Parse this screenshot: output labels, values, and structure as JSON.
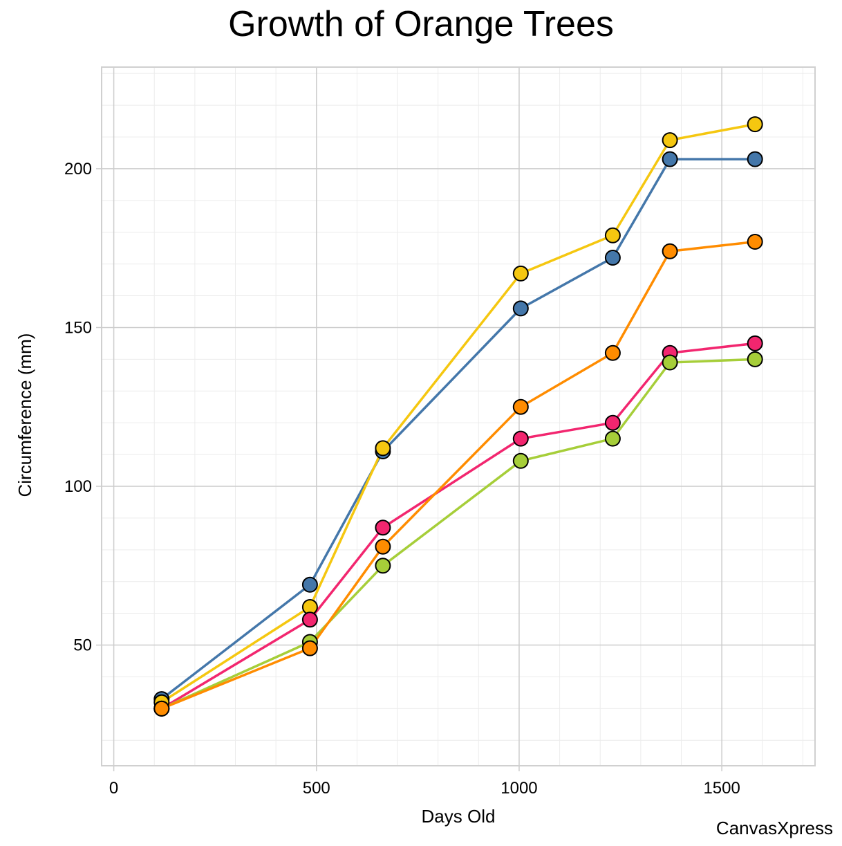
{
  "chart_data": {
    "type": "line",
    "title": "Growth of Orange Trees",
    "xlabel": "Days Old",
    "ylabel": "Circumference (mm)",
    "xlim": [
      -30,
      1730
    ],
    "ylim": [
      12,
      232
    ],
    "x_ticks": [
      0,
      500,
      1000,
      1500
    ],
    "y_ticks": [
      50,
      100,
      150,
      200
    ],
    "x_minor_step": 100,
    "y_minor_step": 10,
    "grid": true,
    "legend": "none",
    "x": [
      118,
      484,
      664,
      1004,
      1231,
      1372,
      1582
    ],
    "series": [
      {
        "color": "#4477AA",
        "values": [
          33,
          69,
          111,
          156,
          172,
          203,
          203
        ]
      },
      {
        "color": "#F5C710",
        "values": [
          32,
          62,
          112,
          167,
          179,
          209,
          214
        ]
      },
      {
        "color": "#F2266F",
        "values": [
          30,
          58,
          87,
          115,
          120,
          142,
          145
        ]
      },
      {
        "color": "#A6CE39",
        "values": [
          30,
          51,
          75,
          108,
          115,
          139,
          140
        ]
      },
      {
        "color": "#FF8C00",
        "values": [
          30,
          49,
          81,
          125,
          142,
          174,
          177
        ]
      }
    ],
    "watermark": "CanvasXpress"
  }
}
